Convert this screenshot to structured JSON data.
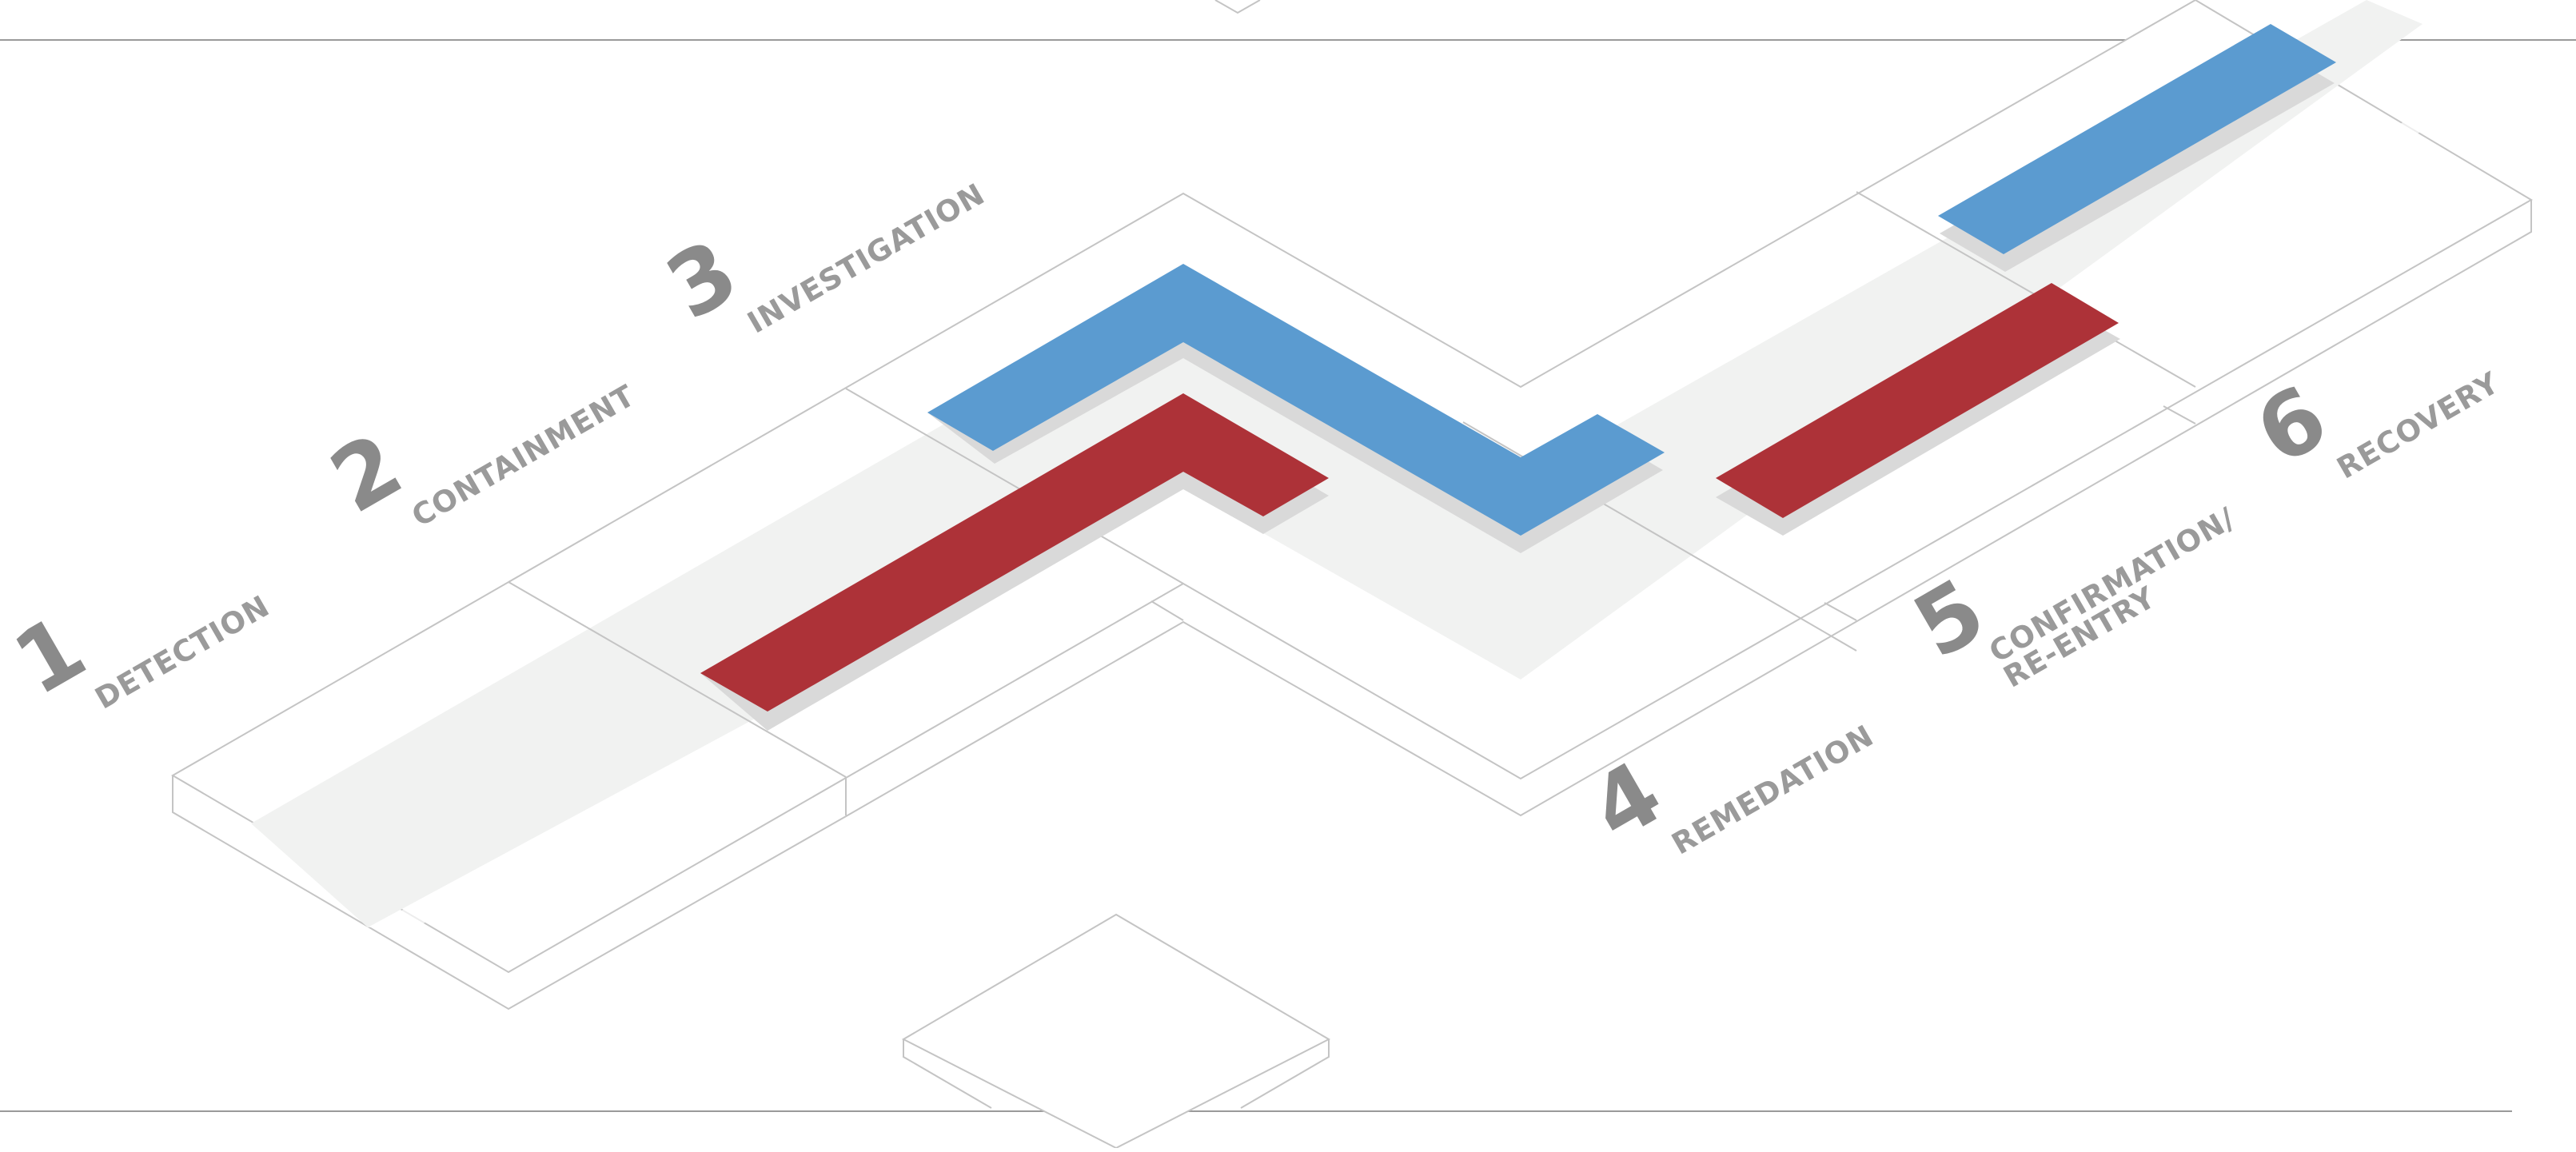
{
  "stages": [
    {
      "number": "1",
      "label_lines": [
        "DETECTION"
      ]
    },
    {
      "number": "2",
      "label_lines": [
        "CONTAINMENT"
      ]
    },
    {
      "number": "3",
      "label_lines": [
        "INVESTIGATION"
      ]
    },
    {
      "number": "4",
      "label_lines": [
        "REMEDATION"
      ]
    },
    {
      "number": "5",
      "label_lines": [
        "CONFIRMATION/",
        "RE-ENTRY"
      ]
    },
    {
      "number": "6",
      "label_lines": [
        "RECOVERY"
      ]
    }
  ],
  "colors": {
    "blue_track": "#5b9bd0",
    "red_track": "#ad3238",
    "shadow": "#d9d9d9",
    "road_band": "#f1f2f1",
    "outline": "#c4c4c4",
    "rule": "#9a9a9a",
    "number": "#8a8a8a",
    "label": "#9a9a9a"
  }
}
